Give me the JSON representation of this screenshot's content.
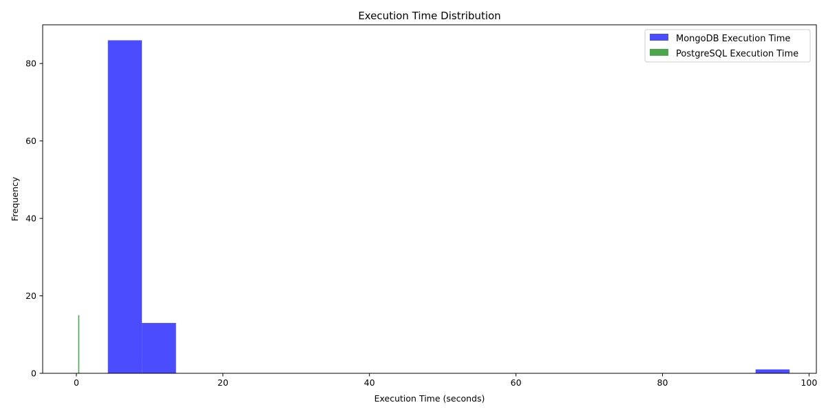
{
  "chart_data": {
    "type": "bar",
    "title": "Execution Time Distribution",
    "xlabel": "Execution Time (seconds)",
    "ylabel": "Frequency",
    "xlim": [
      -4.6,
      101.0
    ],
    "ylim": [
      0,
      90
    ],
    "x_ticks": [
      0,
      20,
      40,
      60,
      80,
      100
    ],
    "y_ticks": [
      0,
      20,
      40,
      60,
      80
    ],
    "grid": false,
    "legend_position": "top-right",
    "series": [
      {
        "name": "MongoDB Execution Time",
        "color": "#0000ff",
        "opacity": 0.7,
        "bins": [
          {
            "x0": 4.3,
            "x1": 8.95,
            "count": 86
          },
          {
            "x0": 8.95,
            "x1": 13.6,
            "count": 13
          },
          {
            "x0": 92.7,
            "x1": 97.35,
            "count": 1
          }
        ]
      },
      {
        "name": "PostgreSQL Execution Time",
        "color": "#008000",
        "opacity": 0.7,
        "bins": [
          {
            "x0": 0.25,
            "x1": 0.4,
            "count": 15
          }
        ]
      }
    ]
  }
}
